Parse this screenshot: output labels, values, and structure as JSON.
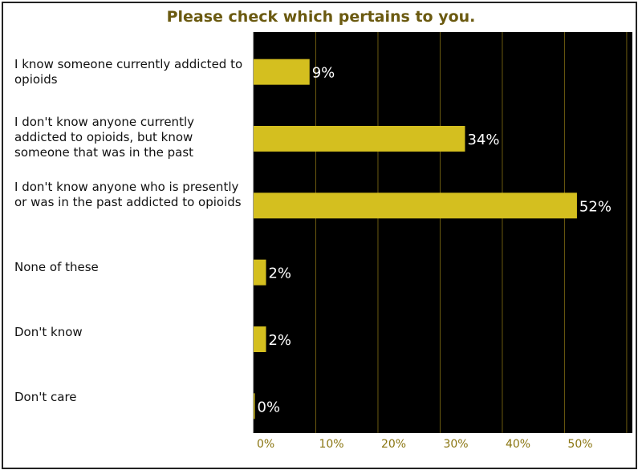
{
  "chart_data": {
    "type": "bar",
    "orientation": "horizontal",
    "title": "Please check which pertains to you.",
    "categories": [
      "I know someone currently addicted to opioids",
      "I don't know anyone currently addicted to opioids, but know someone that was in the past",
      "I don't know anyone who is presently or was in the past addicted to opioids",
      "None of these",
      "Don't know",
      "Don't care"
    ],
    "values": [
      9,
      34,
      52,
      2,
      2,
      0
    ],
    "value_labels": [
      "9%",
      "34%",
      "52%",
      "2%",
      "2%",
      "0%"
    ],
    "x_ticks": [
      "0%",
      "10%",
      "20%",
      "30%",
      "40%",
      "50%"
    ],
    "xlim": [
      0,
      60
    ],
    "grid": true,
    "colors": {
      "bar": "#d4bf1f",
      "plot_background": "#000000",
      "grid": "#6b5a10",
      "title": "#6b5a10",
      "tick_label": "#8a7510",
      "value_label": "#ffffff"
    }
  }
}
